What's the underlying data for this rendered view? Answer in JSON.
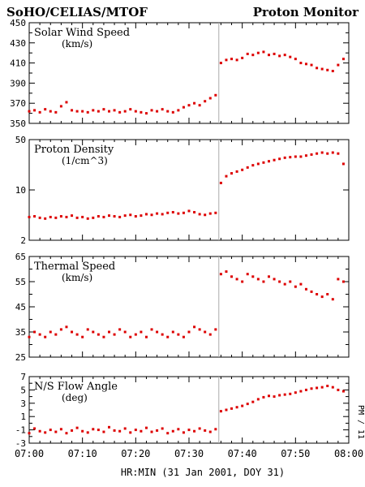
{
  "header": {
    "left_title": "SoHO/CELIAS/MTOF",
    "right_title": "Proton Monitor"
  },
  "side_label": "PM / 11",
  "chart_data": [
    {
      "type": "scatter",
      "label": "Solar Wind Speed",
      "unit": "(km/s)",
      "ylim": [
        350,
        450
      ],
      "y_ticks": [
        "350",
        "370",
        "390",
        "410",
        "430",
        "450"
      ],
      "log": false,
      "color": "#dd0000",
      "event_x": 35.6,
      "x": [
        0,
        1,
        2,
        3,
        4,
        5,
        6,
        7,
        8,
        9,
        10,
        11,
        12,
        13,
        14,
        15,
        16,
        17,
        18,
        19,
        20,
        21,
        22,
        23,
        24,
        25,
        26,
        27,
        28,
        29,
        30,
        31,
        32,
        33,
        34,
        35,
        36,
        37,
        38,
        39,
        40,
        41,
        42,
        43,
        44,
        45,
        46,
        47,
        48,
        49,
        50,
        51,
        52,
        53,
        54,
        55,
        56,
        57,
        58,
        59
      ],
      "values": [
        362,
        363,
        361,
        364,
        362,
        361,
        367,
        371,
        363,
        362,
        362,
        361,
        363,
        362,
        364,
        362,
        363,
        361,
        362,
        364,
        362,
        361,
        360,
        363,
        362,
        364,
        362,
        361,
        363,
        366,
        368,
        370,
        368,
        372,
        375,
        378,
        410,
        413,
        414,
        413,
        415,
        419,
        418,
        420,
        421,
        418,
        419,
        417,
        418,
        416,
        414,
        410,
        409,
        408,
        405,
        404,
        403,
        402,
        408,
        414
      ],
      "xlabel": "HR:MIN (31 Jan 2001, DOY 31)"
    },
    {
      "type": "scatter",
      "label": "Proton Density",
      "unit": "(1/cm^3)",
      "ylim": [
        2,
        50
      ],
      "y_ticks": [
        "2",
        "10",
        "50"
      ],
      "log": true,
      "color": "#dd0000",
      "event_x": 35.6,
      "x": [
        0,
        1,
        2,
        3,
        4,
        5,
        6,
        7,
        8,
        9,
        10,
        11,
        12,
        13,
        14,
        15,
        16,
        17,
        18,
        19,
        20,
        21,
        22,
        23,
        24,
        25,
        26,
        27,
        28,
        29,
        30,
        31,
        32,
        33,
        34,
        35,
        36,
        37,
        38,
        39,
        40,
        41,
        42,
        43,
        44,
        45,
        46,
        47,
        48,
        49,
        50,
        51,
        52,
        53,
        54,
        55,
        56,
        57,
        58,
        59
      ],
      "values": [
        4.2,
        4.3,
        4.1,
        4.0,
        4.2,
        4.1,
        4.3,
        4.2,
        4.4,
        4.1,
        4.2,
        4.0,
        4.1,
        4.3,
        4.2,
        4.4,
        4.3,
        4.2,
        4.4,
        4.5,
        4.3,
        4.4,
        4.6,
        4.5,
        4.7,
        4.6,
        4.8,
        4.9,
        4.7,
        4.8,
        5.1,
        4.9,
        4.6,
        4.5,
        4.7,
        4.8,
        12.5,
        15.5,
        17,
        18,
        19,
        20.5,
        22,
        23,
        24,
        25,
        26,
        27,
        28,
        28.5,
        29,
        29,
        30,
        31,
        32,
        33,
        32,
        33,
        32,
        23
      ],
      "xlabel": "HR:MIN (31 Jan 2001, DOY 31)"
    },
    {
      "type": "scatter",
      "label": "Thermal Speed",
      "unit": "(km/s)",
      "ylim": [
        25,
        65
      ],
      "y_ticks": [
        "25",
        "35",
        "45",
        "55",
        "65"
      ],
      "log": false,
      "color": "#dd0000",
      "event_x": 35.6,
      "x": [
        0,
        1,
        2,
        3,
        4,
        5,
        6,
        7,
        8,
        9,
        10,
        11,
        12,
        13,
        14,
        15,
        16,
        17,
        18,
        19,
        20,
        21,
        22,
        23,
        24,
        25,
        26,
        27,
        28,
        29,
        30,
        31,
        32,
        33,
        34,
        35,
        36,
        37,
        38,
        39,
        40,
        41,
        42,
        43,
        44,
        45,
        46,
        47,
        48,
        49,
        50,
        51,
        52,
        53,
        54,
        55,
        56,
        57,
        58,
        59
      ],
      "values": [
        33,
        35,
        34,
        33,
        35,
        34,
        36,
        37,
        35,
        34,
        33,
        36,
        35,
        34,
        33,
        35,
        34,
        36,
        35,
        33,
        34,
        35,
        33,
        36,
        35,
        34,
        33,
        35,
        34,
        33,
        35,
        37,
        36,
        35,
        34,
        36,
        58,
        59,
        57,
        56,
        55,
        58,
        57,
        56,
        55,
        57,
        56,
        55,
        54,
        55,
        53,
        54,
        52,
        51,
        50,
        49,
        50,
        48,
        56,
        55
      ],
      "xlabel": "HR:MIN (31 Jan 2001, DOY 31)"
    },
    {
      "type": "scatter",
      "label": "N/S Flow Angle",
      "unit": "(deg)",
      "ylim": [
        -3,
        7
      ],
      "y_ticks": [
        "-3",
        "-1",
        "1",
        "3",
        "5",
        "7"
      ],
      "log": false,
      "color": "#dd0000",
      "event_x": 35.6,
      "x": [
        0,
        1,
        2,
        3,
        4,
        5,
        6,
        7,
        8,
        9,
        10,
        11,
        12,
        13,
        14,
        15,
        16,
        17,
        18,
        19,
        20,
        21,
        22,
        23,
        24,
        25,
        26,
        27,
        28,
        29,
        30,
        31,
        32,
        33,
        34,
        35,
        36,
        37,
        38,
        39,
        40,
        41,
        42,
        43,
        44,
        45,
        46,
        47,
        48,
        49,
        50,
        51,
        52,
        53,
        54,
        55,
        56,
        57,
        58,
        59
      ],
      "values": [
        -1.5,
        -0.8,
        -1.2,
        -1.4,
        -1.0,
        -1.3,
        -0.9,
        -1.5,
        -1.1,
        -0.7,
        -1.2,
        -1.4,
        -0.9,
        -1.0,
        -1.3,
        -0.6,
        -1.1,
        -1.2,
        -0.8,
        -1.4,
        -1.0,
        -1.2,
        -0.7,
        -1.3,
        -1.1,
        -0.8,
        -1.5,
        -1.2,
        -0.9,
        -1.4,
        -1.0,
        -1.2,
        -0.8,
        -1.1,
        -1.3,
        -0.9,
        1.8,
        2.0,
        2.2,
        2.4,
        2.6,
        2.9,
        3.2,
        3.6,
        3.9,
        4.1,
        4.0,
        4.2,
        4.3,
        4.4,
        4.6,
        4.8,
        5.0,
        5.2,
        5.3,
        5.4,
        5.6,
        5.4,
        5.0,
        4.8
      ],
      "xlabel": "HR:MIN (31 Jan 2001, DOY 31)"
    }
  ],
  "x_axis": {
    "min": 0,
    "max": 60,
    "ticks": [
      0,
      10,
      20,
      30,
      40,
      50,
      60
    ],
    "tick_labels": [
      "07:00",
      "07:10",
      "07:20",
      "07:30",
      "07:40",
      "07:50",
      "08:00"
    ],
    "label": "HR:MIN (31 Jan 2001, DOY 31)"
  }
}
